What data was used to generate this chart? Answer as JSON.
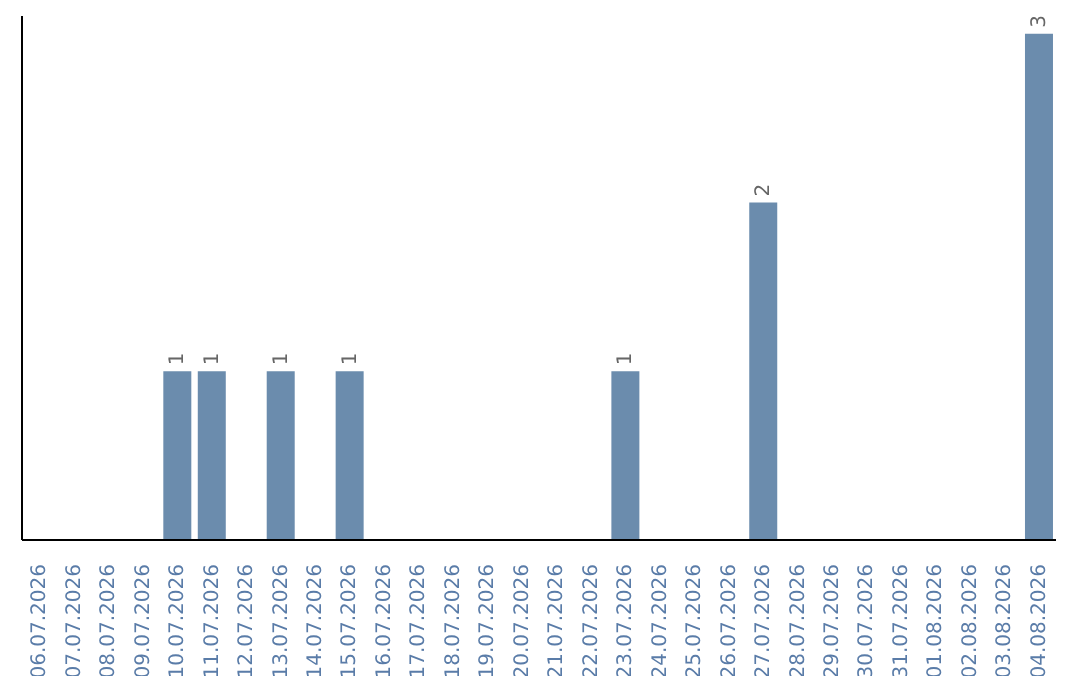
{
  "chart_data": {
    "type": "bar",
    "categories": [
      "06.07.2026",
      "07.07.2026",
      "08.07.2026",
      "09.07.2026",
      "10.07.2026",
      "11.07.2026",
      "12.07.2026",
      "13.07.2026",
      "14.07.2026",
      "15.07.2026",
      "16.07.2026",
      "17.07.2026",
      "18.07.2026",
      "19.07.2026",
      "20.07.2026",
      "21.07.2026",
      "22.07.2026",
      "23.07.2026",
      "24.07.2026",
      "25.07.2026",
      "26.07.2026",
      "27.07.2026",
      "28.07.2026",
      "29.07.2026",
      "30.07.2026",
      "31.07.2026",
      "01.08.2026",
      "02.08.2026",
      "03.08.2026",
      "04.08.2026"
    ],
    "values": [
      0,
      0,
      0,
      0,
      1,
      1,
      0,
      1,
      0,
      1,
      0,
      0,
      0,
      0,
      0,
      0,
      0,
      1,
      0,
      0,
      0,
      2,
      0,
      0,
      0,
      0,
      0,
      0,
      0,
      3
    ],
    "value_labels": [
      null,
      null,
      null,
      null,
      "1",
      "1",
      null,
      "1",
      null,
      "1",
      null,
      null,
      null,
      null,
      null,
      null,
      null,
      "1",
      null,
      null,
      null,
      "2",
      null,
      null,
      null,
      null,
      null,
      null,
      null,
      "3"
    ],
    "color": "#6b8cad",
    "grid": false,
    "legend": false,
    "tick_labels": "x"
  }
}
